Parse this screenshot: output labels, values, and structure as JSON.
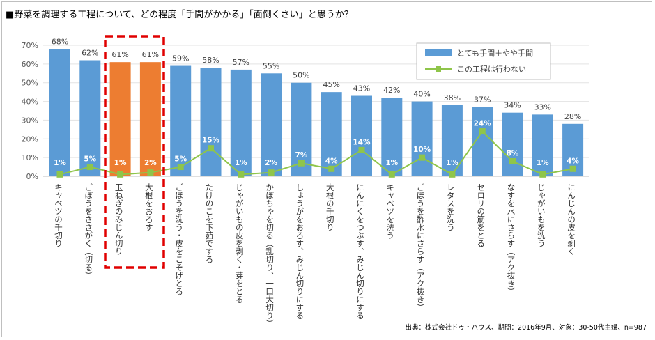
{
  "title": "■野菜を調理する工程について、どの程度「手間がかかる」「面倒くさい」と思うか？",
  "source": "出典：株式会社ドゥ・ハウス、期間：2016年9月、対象：30-50代主婦、n=987",
  "chart_data": {
    "type": "bar",
    "categories": [
      "キャベツの千切り",
      "ごぼうをささがく（切る）",
      "玉ねぎのみじん切り",
      "大根をおろす",
      "ごぼうを洗う・皮をこそげとる",
      "たけのこを下茹でする",
      "じゃがいもの皮を剥く・芽をとる",
      "かぼちゃを切る（乱切り、一口大切り）",
      "しょうがをおろす、みじん切りにする",
      "大根の千切り",
      "にんにくをつぶす、みじん切りにする",
      "キャベツを洗う",
      "ごぼうを酢水にさらす（アク抜き）",
      "レタスを洗う",
      "セロリの筋をとる",
      "なすを水にさらす（アク抜き）",
      "じゃがいもを洗う",
      "にんじんの皮を剥く"
    ],
    "series": [
      {
        "name": "とても手間＋やや手間",
        "type": "bar",
        "values": [
          68,
          62,
          61,
          61,
          59,
          58,
          57,
          55,
          50,
          45,
          43,
          42,
          40,
          38,
          37,
          34,
          33,
          28
        ]
      },
      {
        "name": "この工程は行わない",
        "type": "line",
        "values": [
          1,
          5,
          1,
          2,
          5,
          15,
          1,
          2,
          7,
          4,
          14,
          1,
          10,
          1,
          24,
          8,
          1,
          4
        ]
      }
    ],
    "highlighted_categories": [
      "玉ねぎのみじん切り",
      "大根をおろす"
    ],
    "ylim": [
      0,
      70
    ],
    "yticks": [
      "0%",
      "10%",
      "20%",
      "30%",
      "40%",
      "50%",
      "60%",
      "70%"
    ],
    "grid": true,
    "legend": "top-right",
    "colors": {
      "bar": "#5b9bd5",
      "highlight_bar": "#ed7d31",
      "line": "#8fc54a",
      "highlight_box": "#e00000"
    }
  }
}
